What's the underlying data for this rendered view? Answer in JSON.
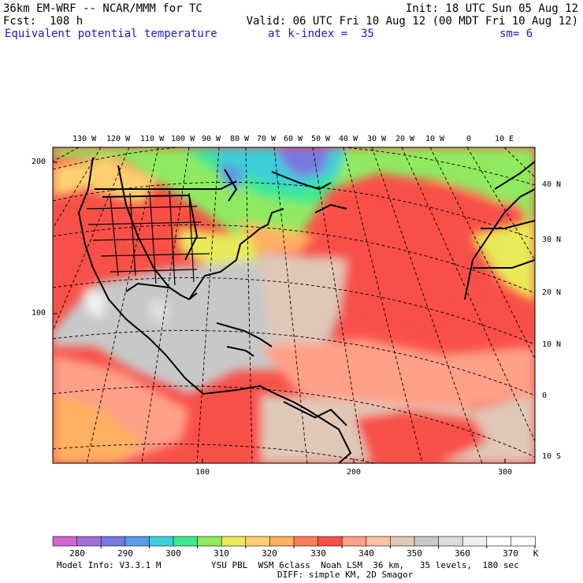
{
  "header": {
    "title": "36km EM-WRF -- NCAR/MMM for TC",
    "init": "Init: 18 UTC Sun 05 Aug 12",
    "fcst": "Fcst:  108 h",
    "valid": "Valid: 06 UTC Fri 10 Aug 12 (00 MDT Fri 10 Aug 12)",
    "field": "Equivalent potential temperature",
    "level": "at k-index =  35",
    "smooth": "sm= 6"
  },
  "map": {
    "lon_labels": [
      "130 W",
      "120 W",
      "110 W",
      "100 W",
      "90 W",
      "80 W",
      "70 W",
      "60 W",
      "50 W",
      "40 W",
      "30 W",
      "20 W",
      "10 W",
      "0",
      "10 E"
    ],
    "lat_labels": [
      "40 N",
      "30 N",
      "20 N",
      "10 N",
      "0",
      "10 S"
    ],
    "y_grid_labels": [
      "200",
      "100"
    ],
    "x_grid_labels": [
      "100",
      "200",
      "300"
    ]
  },
  "colorbar": {
    "labels": [
      "280",
      "290",
      "300",
      "310",
      "320",
      "330",
      "340",
      "350",
      "360",
      "370"
    ],
    "unit": "K",
    "colors": [
      "#d066d0",
      "#a070d8",
      "#7878e0",
      "#5a9ae8",
      "#3ad0d8",
      "#40e890",
      "#90ea60",
      "#e8ea58",
      "#ffd070",
      "#ffb060",
      "#ff7c5a",
      "#f85048",
      "#ffa088",
      "#ffc0a8",
      "#e0c8b8",
      "#c8c8c8",
      "#dcdcdc",
      "#f0f0f0",
      "#ffffff",
      "#ffffff"
    ]
  },
  "footer": {
    "model_info": "Model Info: V3.3.1 M",
    "physics": "YSU PBL  WSM 6class  Noah LSM  36 km,   35 levels,  180 sec",
    "diff": "DIFF: simple KM, 2D Smagor"
  }
}
